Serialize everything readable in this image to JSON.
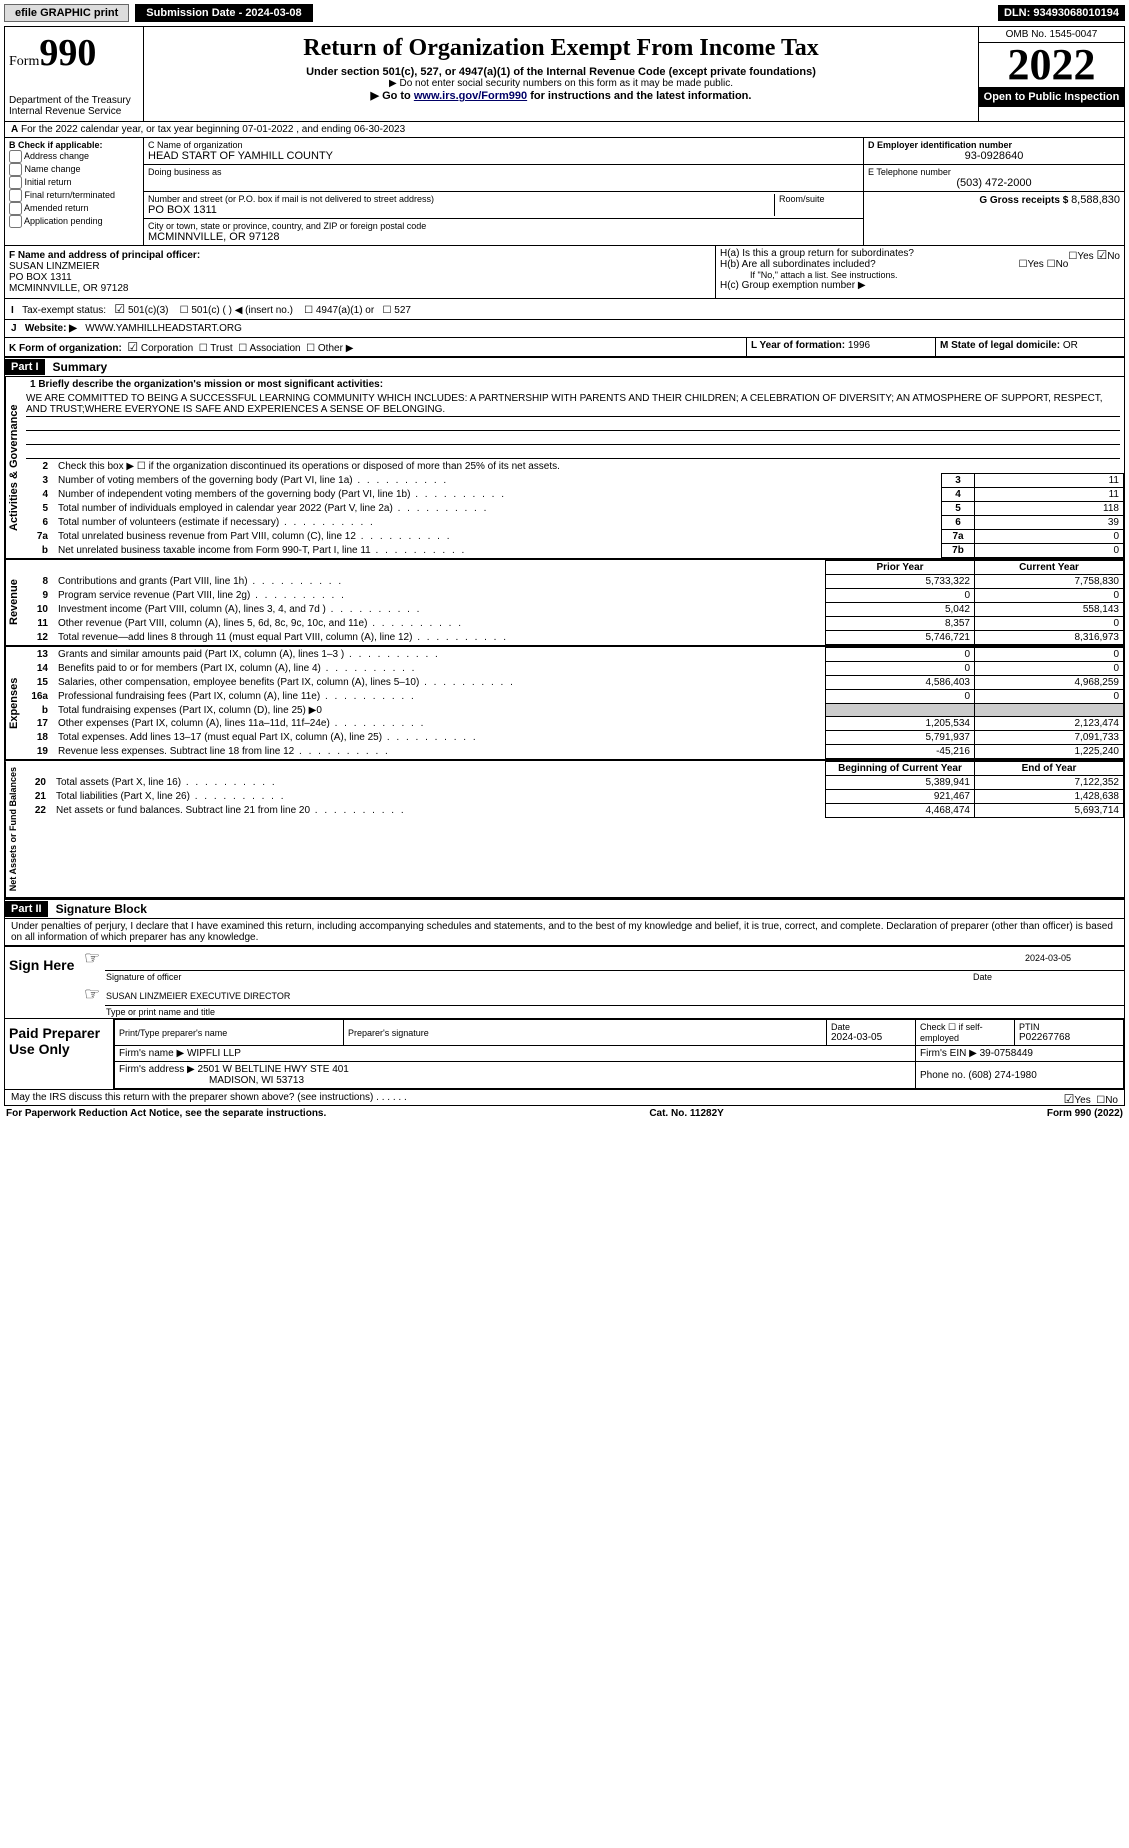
{
  "topbar": {
    "efile": "efile GRAPHIC print",
    "submission": "Submission Date - 2024-03-08",
    "dln": "DLN: 93493068010194"
  },
  "header": {
    "form_word": "Form",
    "form_num": "990",
    "dept": "Department of the Treasury",
    "irs": "Internal Revenue Service",
    "title": "Return of Organization Exempt From Income Tax",
    "subtitle": "Under section 501(c), 527, or 4947(a)(1) of the Internal Revenue Code (except private foundations)",
    "note1": "▶ Do not enter social security numbers on this form as it may be made public.",
    "note2_pre": "▶ Go to ",
    "note2_link": "www.irs.gov/Form990",
    "note2_post": " for instructions and the latest information.",
    "omb": "OMB No. 1545-0047",
    "year": "2022",
    "open": "Open to Public Inspection"
  },
  "line_a": "For the 2022 calendar year, or tax year beginning 07-01-2022    , and ending 06-30-2023",
  "box_b": {
    "title": "B Check if applicable:",
    "opts": [
      "Address change",
      "Name change",
      "Initial return",
      "Final return/terminated",
      "Amended return",
      "Application pending"
    ]
  },
  "box_c": {
    "name_lbl": "C Name of organization",
    "name": "HEAD START OF YAMHILL COUNTY",
    "dba_lbl": "Doing business as",
    "addr_lbl": "Number and street (or P.O. box if mail is not delivered to street address)",
    "room_lbl": "Room/suite",
    "addr": "PO BOX 1311",
    "city_lbl": "City or town, state or province, country, and ZIP or foreign postal code",
    "city": "MCMINNVILLE, OR  97128"
  },
  "box_d": {
    "lbl": "D Employer identification number",
    "val": "93-0928640"
  },
  "box_e": {
    "lbl": "E Telephone number",
    "val": "(503) 472-2000"
  },
  "box_g": {
    "lbl": "G Gross receipts $",
    "val": "8,588,830"
  },
  "box_f": {
    "lbl": "F  Name and address of principal officer:",
    "name": "SUSAN LINZMEIER",
    "addr": "PO BOX 1311",
    "city": "MCMINNVILLE, OR  97128"
  },
  "box_h": {
    "a": "H(a)  Is this a group return for subordinates?",
    "b": "H(b)  Are all subordinates included?",
    "note": "If \"No,\" attach a list. See instructions.",
    "c": "H(c)  Group exemption number ▶",
    "yes": "Yes",
    "no": "No"
  },
  "box_i": {
    "lbl": "Tax-exempt status:",
    "opts": [
      "501(c)(3)",
      "501(c) (   ) ◀ (insert no.)",
      "4947(a)(1) or",
      "527"
    ]
  },
  "box_j": {
    "lbl": "Website: ▶",
    "val": "WWW.YAMHILLHEADSTART.ORG"
  },
  "box_k": {
    "lbl": "K Form of organization:",
    "opts": [
      "Corporation",
      "Trust",
      "Association",
      "Other ▶"
    ]
  },
  "box_l": {
    "lbl": "L Year of formation:",
    "val": "1996"
  },
  "box_m": {
    "lbl": "M State of legal domicile:",
    "val": "OR"
  },
  "part1": {
    "tag": "Part I",
    "title": "Summary"
  },
  "tabs": {
    "ag": "Activities & Governance",
    "rev": "Revenue",
    "exp": "Expenses",
    "na": "Net Assets or Fund Balances"
  },
  "mission_lbl": "1  Briefly describe the organization's mission or most significant activities:",
  "mission": "WE ARE COMMITTED TO BEING A SUCCESSFUL LEARNING COMMUNITY WHICH INCLUDES: A PARTNERSHIP WITH PARENTS AND THEIR CHILDREN; A CELEBRATION OF DIVERSITY; AN ATMOSPHERE OF SUPPORT, RESPECT, AND TRUST;WHERE EVERYONE IS SAFE AND EXPERIENCES A SENSE OF BELONGING.",
  "lines_ag": [
    {
      "n": "2",
      "t": "Check this box ▶ ☐  if the organization discontinued its operations or disposed of more than 25% of its net assets."
    },
    {
      "n": "3",
      "t": "Number of voting members of the governing body (Part VI, line 1a)",
      "b": "3",
      "v": "11"
    },
    {
      "n": "4",
      "t": "Number of independent voting members of the governing body (Part VI, line 1b)",
      "b": "4",
      "v": "11"
    },
    {
      "n": "5",
      "t": "Total number of individuals employed in calendar year 2022 (Part V, line 2a)",
      "b": "5",
      "v": "118"
    },
    {
      "n": "6",
      "t": "Total number of volunteers (estimate if necessary)",
      "b": "6",
      "v": "39"
    },
    {
      "n": "7a",
      "t": "Total unrelated business revenue from Part VIII, column (C), line 12",
      "b": "7a",
      "v": "0"
    },
    {
      "n": "b",
      "t": "Net unrelated business taxable income from Form 990-T, Part I, line 11",
      "b": "7b",
      "v": "0"
    }
  ],
  "col_hdr": {
    "prior": "Prior Year",
    "curr": "Current Year"
  },
  "lines_rev": [
    {
      "n": "8",
      "t": "Contributions and grants (Part VIII, line 1h)",
      "p": "5,733,322",
      "c": "7,758,830"
    },
    {
      "n": "9",
      "t": "Program service revenue (Part VIII, line 2g)",
      "p": "0",
      "c": "0"
    },
    {
      "n": "10",
      "t": "Investment income (Part VIII, column (A), lines 3, 4, and 7d )",
      "p": "5,042",
      "c": "558,143"
    },
    {
      "n": "11",
      "t": "Other revenue (Part VIII, column (A), lines 5, 6d, 8c, 9c, 10c, and 11e)",
      "p": "8,357",
      "c": "0"
    },
    {
      "n": "12",
      "t": "Total revenue—add lines 8 through 11 (must equal Part VIII, column (A), line 12)",
      "p": "5,746,721",
      "c": "8,316,973"
    }
  ],
  "lines_exp": [
    {
      "n": "13",
      "t": "Grants and similar amounts paid (Part IX, column (A), lines 1–3 )",
      "p": "0",
      "c": "0"
    },
    {
      "n": "14",
      "t": "Benefits paid to or for members (Part IX, column (A), line 4)",
      "p": "0",
      "c": "0"
    },
    {
      "n": "15",
      "t": "Salaries, other compensation, employee benefits (Part IX, column (A), lines 5–10)",
      "p": "4,586,403",
      "c": "4,968,259"
    },
    {
      "n": "16a",
      "t": "Professional fundraising fees (Part IX, column (A), line 11e)",
      "p": "0",
      "c": "0"
    },
    {
      "n": "b",
      "t": "Total fundraising expenses (Part IX, column (D), line 25) ▶0",
      "p": "",
      "c": "",
      "grey": true
    },
    {
      "n": "17",
      "t": "Other expenses (Part IX, column (A), lines 11a–11d, 11f–24e)",
      "p": "1,205,534",
      "c": "2,123,474"
    },
    {
      "n": "18",
      "t": "Total expenses. Add lines 13–17 (must equal Part IX, column (A), line 25)",
      "p": "5,791,937",
      "c": "7,091,733"
    },
    {
      "n": "19",
      "t": "Revenue less expenses. Subtract line 18 from line 12",
      "p": "-45,216",
      "c": "1,225,240"
    }
  ],
  "col_hdr2": {
    "beg": "Beginning of Current Year",
    "end": "End of Year"
  },
  "lines_na": [
    {
      "n": "20",
      "t": "Total assets (Part X, line 16)",
      "p": "5,389,941",
      "c": "7,122,352"
    },
    {
      "n": "21",
      "t": "Total liabilities (Part X, line 26)",
      "p": "921,467",
      "c": "1,428,638"
    },
    {
      "n": "22",
      "t": "Net assets or fund balances. Subtract line 21 from line 20",
      "p": "4,468,474",
      "c": "5,693,714"
    }
  ],
  "part2": {
    "tag": "Part II",
    "title": "Signature Block"
  },
  "decl": "Under penalties of perjury, I declare that I have examined this return, including accompanying schedules and statements, and to the best of my knowledge and belief, it is true, correct, and complete. Declaration of preparer (other than officer) is based on all information of which preparer has any knowledge.",
  "sign": {
    "here": "Sign Here",
    "sig_lbl": "Signature of officer",
    "date_lbl": "Date",
    "date": "2024-03-05",
    "name": "SUSAN LINZMEIER  EXECUTIVE DIRECTOR",
    "name_lbl": "Type or print name and title"
  },
  "paid": {
    "title": "Paid Preparer Use Only",
    "c1": "Print/Type preparer's name",
    "c2": "Preparer's signature",
    "c3": "Date",
    "c3v": "2024-03-05",
    "c4": "Check ☐ if self-employed",
    "c5": "PTIN",
    "c5v": "P02267768",
    "firm_lbl": "Firm's name    ▶",
    "firm": "WIPFLI LLP",
    "ein_lbl": "Firm's EIN ▶",
    "ein": "39-0758449",
    "addr_lbl": "Firm's address ▶",
    "addr": "2501 W BELTLINE HWY STE 401",
    "addr2": "MADISON, WI  53713",
    "phone_lbl": "Phone no.",
    "phone": "(608) 274-1980"
  },
  "may": "May the IRS discuss this return with the preparer shown above? (see instructions)",
  "footer": {
    "l": "For Paperwork Reduction Act Notice, see the separate instructions.",
    "m": "Cat. No. 11282Y",
    "r": "Form 990 (2022)"
  }
}
